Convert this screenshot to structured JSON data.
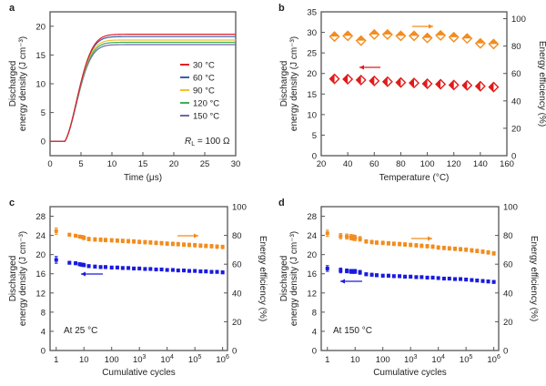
{
  "figure": {
    "panels": [
      "a",
      "b",
      "c",
      "d"
    ]
  },
  "colors": {
    "axis": "#555555",
    "orange": "#f28c1e",
    "red": "#e01b1b",
    "blue": "#1a1adf"
  },
  "chart_data": [
    {
      "panel": "a",
      "type": "line",
      "title": "",
      "xlabel": "Time (μs)",
      "ylabel_line1": "Discharged",
      "ylabel_line2": "energy density (J cm⁻³)",
      "xlim": [
        0,
        30
      ],
      "ylim": [
        -2.5,
        22.5
      ],
      "xticks": [
        0,
        5,
        10,
        15,
        20,
        25,
        30
      ],
      "yticks": [
        0,
        5,
        10,
        15,
        20
      ],
      "grid": false,
      "legend_position": "right-middle",
      "annotation": "R_L = 100 Ω",
      "annotation_main": "R",
      "annotation_sub": "L",
      "annotation_rest": " = 100 Ω",
      "onset_time": 2.4,
      "series": [
        {
          "name": "30 °C",
          "color": "#e0202a",
          "plateau": 18.6,
          "tau": 2.6
        },
        {
          "name": "60 °C",
          "color": "#3a5fa8",
          "plateau": 18.2,
          "tau": 2.55
        },
        {
          "name": "90 °C",
          "color": "#f2c22a",
          "plateau": 17.6,
          "tau": 2.5
        },
        {
          "name": "120 °C",
          "color": "#3fae5a",
          "plateau": 17.2,
          "tau": 2.5
        },
        {
          "name": "150 °C",
          "color": "#6a6aa8",
          "plateau": 16.8,
          "tau": 2.5
        }
      ]
    },
    {
      "panel": "b",
      "type": "scatter",
      "xlabel": "Temperature (°C)",
      "ylabel_line1": "Discharged",
      "ylabel_line2": "energy density (J cm⁻³)",
      "y2label": "Energy efficiency (%)",
      "xlim": [
        20,
        160
      ],
      "ylim": [
        0,
        35
      ],
      "y2lim": [
        0,
        105
      ],
      "xticks": [
        20,
        40,
        60,
        80,
        100,
        120,
        140,
        160
      ],
      "yticks": [
        0,
        5,
        10,
        15,
        20,
        25,
        30,
        35
      ],
      "y2ticks": [
        0,
        20,
        40,
        60,
        80,
        100
      ],
      "grid": false,
      "x": [
        30,
        40,
        50,
        60,
        70,
        80,
        90,
        100,
        110,
        120,
        130,
        140,
        150
      ],
      "series": [
        {
          "name": "Energy efficiency",
          "axis": "right",
          "color": "#f28c1e",
          "values": [
            87,
            87.5,
            84,
            88.5,
            88.5,
            87.5,
            87.5,
            86,
            87.8,
            86.5,
            85.6,
            82,
            81.5
          ]
        },
        {
          "name": "Discharged energy density",
          "axis": "left",
          "color": "#e01b1b",
          "values": [
            18.7,
            18.6,
            18.4,
            18.2,
            18.0,
            17.8,
            17.7,
            17.5,
            17.4,
            17.2,
            17.1,
            16.9,
            16.7
          ]
        }
      ]
    },
    {
      "panel": "c",
      "type": "scatter",
      "xlabel": "Cumulative cycles",
      "ylabel_line1": "Discharged",
      "ylabel_line2": "energy density (J cm⁻³)",
      "y2label": "Energy efficiency (%)",
      "xscale": "log",
      "xlim": [
        0.6,
        1500000.0
      ],
      "ylim": [
        0,
        30
      ],
      "y2lim": [
        0,
        100
      ],
      "xticks": [
        1,
        10,
        100,
        1000,
        10000,
        100000,
        1000000
      ],
      "xticklabels": [
        {
          "b": "1",
          "e": ""
        },
        {
          "b": "10",
          "e": ""
        },
        {
          "b": "100",
          "e": ""
        },
        {
          "b": "10",
          "e": "3"
        },
        {
          "b": "10",
          "e": "4"
        },
        {
          "b": "10",
          "e": "5"
        },
        {
          "b": "10",
          "e": "6"
        }
      ],
      "yticks": [
        0,
        4,
        8,
        12,
        16,
        20,
        24,
        28
      ],
      "y2ticks": [
        0,
        20,
        40,
        60,
        80,
        100
      ],
      "grid": false,
      "annotation": "At 25 °C",
      "x": [
        1,
        3,
        5,
        7,
        8,
        9,
        10,
        15,
        25,
        40,
        60,
        100,
        160,
        250,
        400,
        630,
        1000,
        1600,
        2500,
        4000,
        6300,
        10000,
        16000,
        25000,
        40000,
        63000,
        100000,
        160000,
        250000,
        400000,
        630000,
        1000000
      ],
      "series": [
        {
          "name": "Energy efficiency",
          "axis": "right",
          "color": "#f28c1e",
          "values": [
            83,
            80.5,
            79.8,
            79.2,
            79,
            78.8,
            78.3,
            77.5,
            77.2,
            77,
            76.8,
            76.6,
            76.4,
            76.2,
            76,
            75.8,
            75.5,
            75.3,
            75.1,
            74.8,
            74.6,
            74.3,
            74.1,
            73.9,
            73.6,
            73.4,
            73.2,
            72.9,
            72.7,
            72.5,
            72.2,
            72
          ],
          "err": [
            2.2,
            1,
            1,
            1,
            1,
            1,
            1.2,
            1.2,
            1.2,
            1.2,
            1.2,
            1.2,
            1.2,
            1.2,
            1.2,
            1.2,
            1.2,
            1.2,
            1.2,
            1.2,
            1.2,
            1.2,
            1.2,
            1.2,
            1.2,
            1.2,
            1.2,
            1.2,
            1.2,
            1.2,
            1.2,
            1.2
          ]
        },
        {
          "name": "Discharged energy density",
          "axis": "left",
          "color": "#1a1adf",
          "values": [
            18.9,
            18.3,
            18.2,
            18.0,
            17.9,
            17.9,
            17.8,
            17.6,
            17.5,
            17.4,
            17.4,
            17.3,
            17.3,
            17.2,
            17.2,
            17.1,
            17.1,
            17.0,
            17.0,
            16.9,
            16.9,
            16.8,
            16.8,
            16.7,
            16.7,
            16.6,
            16.6,
            16.5,
            16.5,
            16.4,
            16.4,
            16.3
          ],
          "err": [
            0.7,
            0.3,
            0.3,
            0.3,
            0.3,
            0.3,
            0.3,
            0.3,
            0.3,
            0.3,
            0.3,
            0.3,
            0.3,
            0.3,
            0.3,
            0.3,
            0.3,
            0.3,
            0.3,
            0.3,
            0.3,
            0.3,
            0.3,
            0.3,
            0.3,
            0.3,
            0.3,
            0.3,
            0.3,
            0.3,
            0.3,
            0.3
          ]
        }
      ]
    },
    {
      "panel": "d",
      "type": "scatter",
      "xlabel": "Cumulative cycles",
      "ylabel_line1": "Discharged",
      "ylabel_line2": "energy density (J cm⁻³)",
      "y2label": "Energy efficiency (%)",
      "xscale": "log",
      "xlim": [
        0.6,
        1500000.0
      ],
      "ylim": [
        0,
        30
      ],
      "y2lim": [
        0,
        100
      ],
      "xticks": [
        1,
        10,
        100,
        1000,
        10000,
        100000,
        1000000
      ],
      "xticklabels": [
        {
          "b": "1",
          "e": ""
        },
        {
          "b": "10",
          "e": ""
        },
        {
          "b": "100",
          "e": ""
        },
        {
          "b": "10",
          "e": "3"
        },
        {
          "b": "10",
          "e": "4"
        },
        {
          "b": "10",
          "e": "5"
        },
        {
          "b": "10",
          "e": "6"
        }
      ],
      "yticks": [
        0,
        4,
        8,
        12,
        16,
        20,
        24,
        28
      ],
      "y2ticks": [
        0,
        20,
        40,
        60,
        80,
        100
      ],
      "grid": false,
      "annotation": "At 150 °C",
      "x": [
        1,
        3,
        5,
        7,
        8,
        9,
        10,
        15,
        25,
        40,
        60,
        100,
        160,
        250,
        400,
        630,
        1000,
        1600,
        2500,
        4000,
        6300,
        10000,
        16000,
        25000,
        40000,
        63000,
        100000,
        160000,
        250000,
        400000,
        630000,
        1000000
      ],
      "series": [
        {
          "name": "Energy efficiency",
          "axis": "right",
          "color": "#f28c1e",
          "values": [
            81.5,
            79.5,
            79.2,
            78.8,
            78.6,
            78.4,
            78.2,
            77.6,
            75.8,
            75.4,
            75,
            74.8,
            74.5,
            74.2,
            74,
            73.7,
            73.4,
            73.1,
            72.8,
            72.5,
            72.2,
            71.6,
            71.3,
            71,
            70.7,
            70.4,
            70.1,
            69.6,
            69.2,
            68.7,
            68.2,
            67.5
          ],
          "err": [
            2.2,
            1.8,
            1.8,
            1.8,
            1.8,
            1.8,
            1.8,
            1.6,
            1.2,
            1.2,
            1.2,
            1.2,
            1.2,
            1.2,
            1.2,
            1.2,
            1.2,
            1.2,
            1.2,
            1.2,
            1.2,
            1.2,
            1.2,
            1.2,
            1.2,
            1.2,
            1.2,
            1.2,
            1.2,
            1.2,
            1.2,
            1.2
          ]
        },
        {
          "name": "Discharged energy density",
          "axis": "left",
          "color": "#1a1adf",
          "values": [
            17.1,
            16.7,
            16.6,
            16.5,
            16.5,
            16.5,
            16.5,
            16.3,
            15.9,
            15.8,
            15.7,
            15.6,
            15.6,
            15.5,
            15.5,
            15.4,
            15.4,
            15.3,
            15.3,
            15.2,
            15.2,
            15.1,
            15.0,
            15.0,
            14.9,
            14.9,
            14.8,
            14.7,
            14.6,
            14.5,
            14.4,
            14.3
          ],
          "err": [
            0.6,
            0.5,
            0.4,
            0.4,
            0.4,
            0.4,
            0.4,
            0.4,
            0.3,
            0.3,
            0.3,
            0.3,
            0.3,
            0.3,
            0.3,
            0.3,
            0.3,
            0.3,
            0.3,
            0.3,
            0.3,
            0.3,
            0.3,
            0.3,
            0.3,
            0.3,
            0.3,
            0.3,
            0.3,
            0.3,
            0.3,
            0.3
          ]
        }
      ]
    }
  ]
}
